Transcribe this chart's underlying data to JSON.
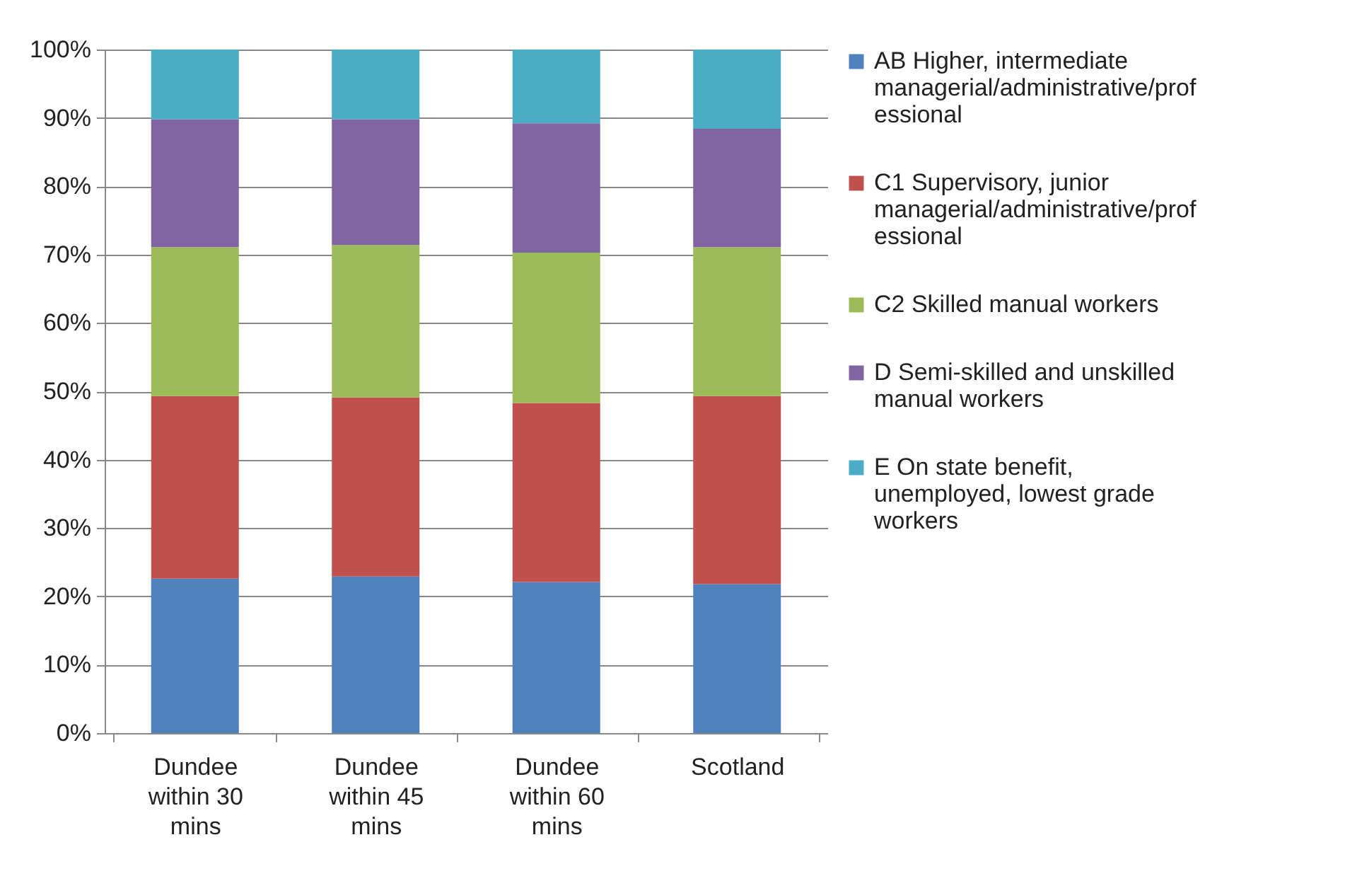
{
  "chart_data": {
    "type": "bar",
    "stacked": true,
    "categories": [
      "Dundee within 30 mins",
      "Dundee within 45 mins",
      "Dundee within 60 mins",
      "Scotland"
    ],
    "series": [
      {
        "name": "AB Higher, intermediate managerial/administrative/professional",
        "color": "#4f81bd",
        "values": [
          22.6,
          22.9,
          22.1,
          21.8
        ]
      },
      {
        "name": "C1 Supervisory, junior managerial/administrative/professional",
        "color": "#c0504d",
        "values": [
          26.7,
          26.2,
          26.2,
          27.5
        ]
      },
      {
        "name": "C2 Skilled manual workers",
        "color": "#9bbb59",
        "values": [
          21.8,
          22.3,
          22.0,
          21.8
        ]
      },
      {
        "name": "D Semi-skilled and unskilled manual workers",
        "color": "#8064a2",
        "values": [
          18.7,
          18.4,
          18.9,
          17.3
        ]
      },
      {
        "name": "E On state benefit, unemployed, lowest grade workers",
        "color": "#4bacc6",
        "values": [
          10.2,
          10.2,
          10.8,
          11.6
        ]
      }
    ],
    "ylim": [
      0,
      100
    ],
    "yticks": [
      {
        "value": 0,
        "label": "0%"
      },
      {
        "value": 10,
        "label": "10%"
      },
      {
        "value": 20,
        "label": "20%"
      },
      {
        "value": 30,
        "label": "30%"
      },
      {
        "value": 40,
        "label": "40%"
      },
      {
        "value": 50,
        "label": "50%"
      },
      {
        "value": 60,
        "label": "60%"
      },
      {
        "value": 70,
        "label": "70%"
      },
      {
        "value": 80,
        "label": "80%"
      },
      {
        "value": 90,
        "label": "90%"
      },
      {
        "value": 100,
        "label": "100%"
      }
    ],
    "grid": "y",
    "legend": "right"
  }
}
